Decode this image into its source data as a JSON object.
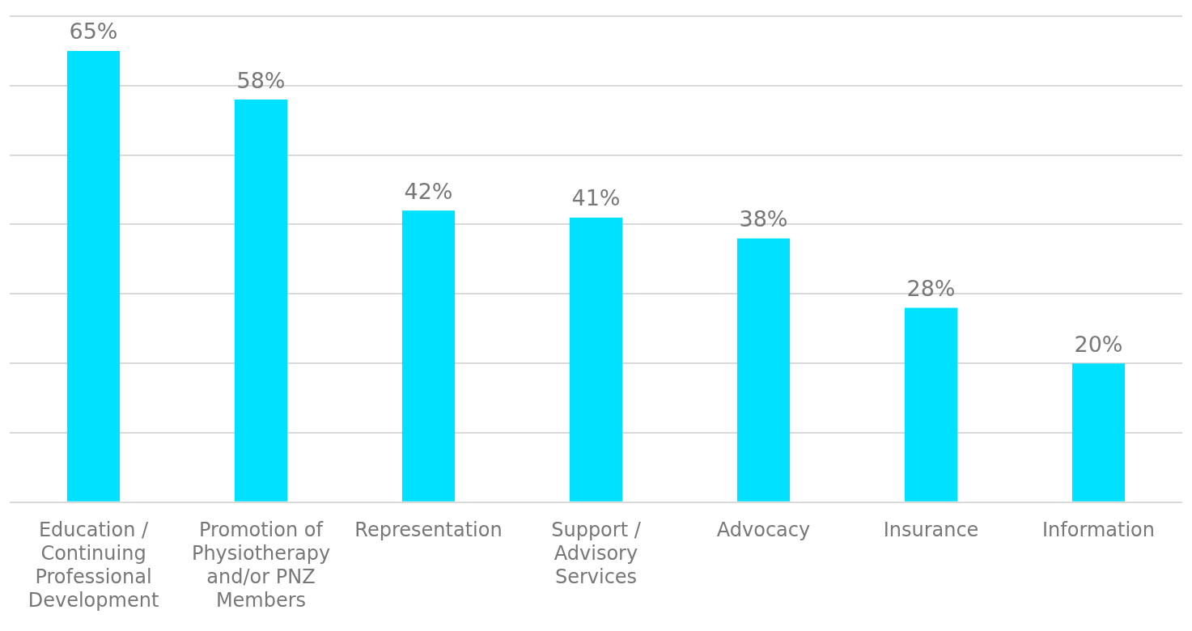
{
  "chart_data": {
    "type": "bar",
    "categories": [
      "Education / Continuing Professional Development",
      "Promotion of Physiotherapy and/or PNZ Members",
      "Representation",
      "Support / Advisory Services",
      "Advocacy",
      "Insurance",
      "Information"
    ],
    "values": [
      65,
      58,
      42,
      41,
      38,
      28,
      20
    ],
    "value_labels": [
      "65%",
      "58%",
      "42%",
      "41%",
      "38%",
      "28%",
      "20%"
    ],
    "color": "#00e1ff",
    "ylim": [
      0,
      70
    ],
    "yticks": [
      {
        "value": 0,
        "label": null
      },
      {
        "value": 10,
        "label": null
      },
      {
        "value": 20,
        "label": null
      },
      {
        "value": 30,
        "label": null
      },
      {
        "value": 40,
        "label": null
      },
      {
        "value": 50,
        "label": null
      },
      {
        "value": 60,
        "label": null
      },
      {
        "value": 70,
        "label": null
      }
    ],
    "grid": "y",
    "tick_labels": "x",
    "legend": false
  }
}
